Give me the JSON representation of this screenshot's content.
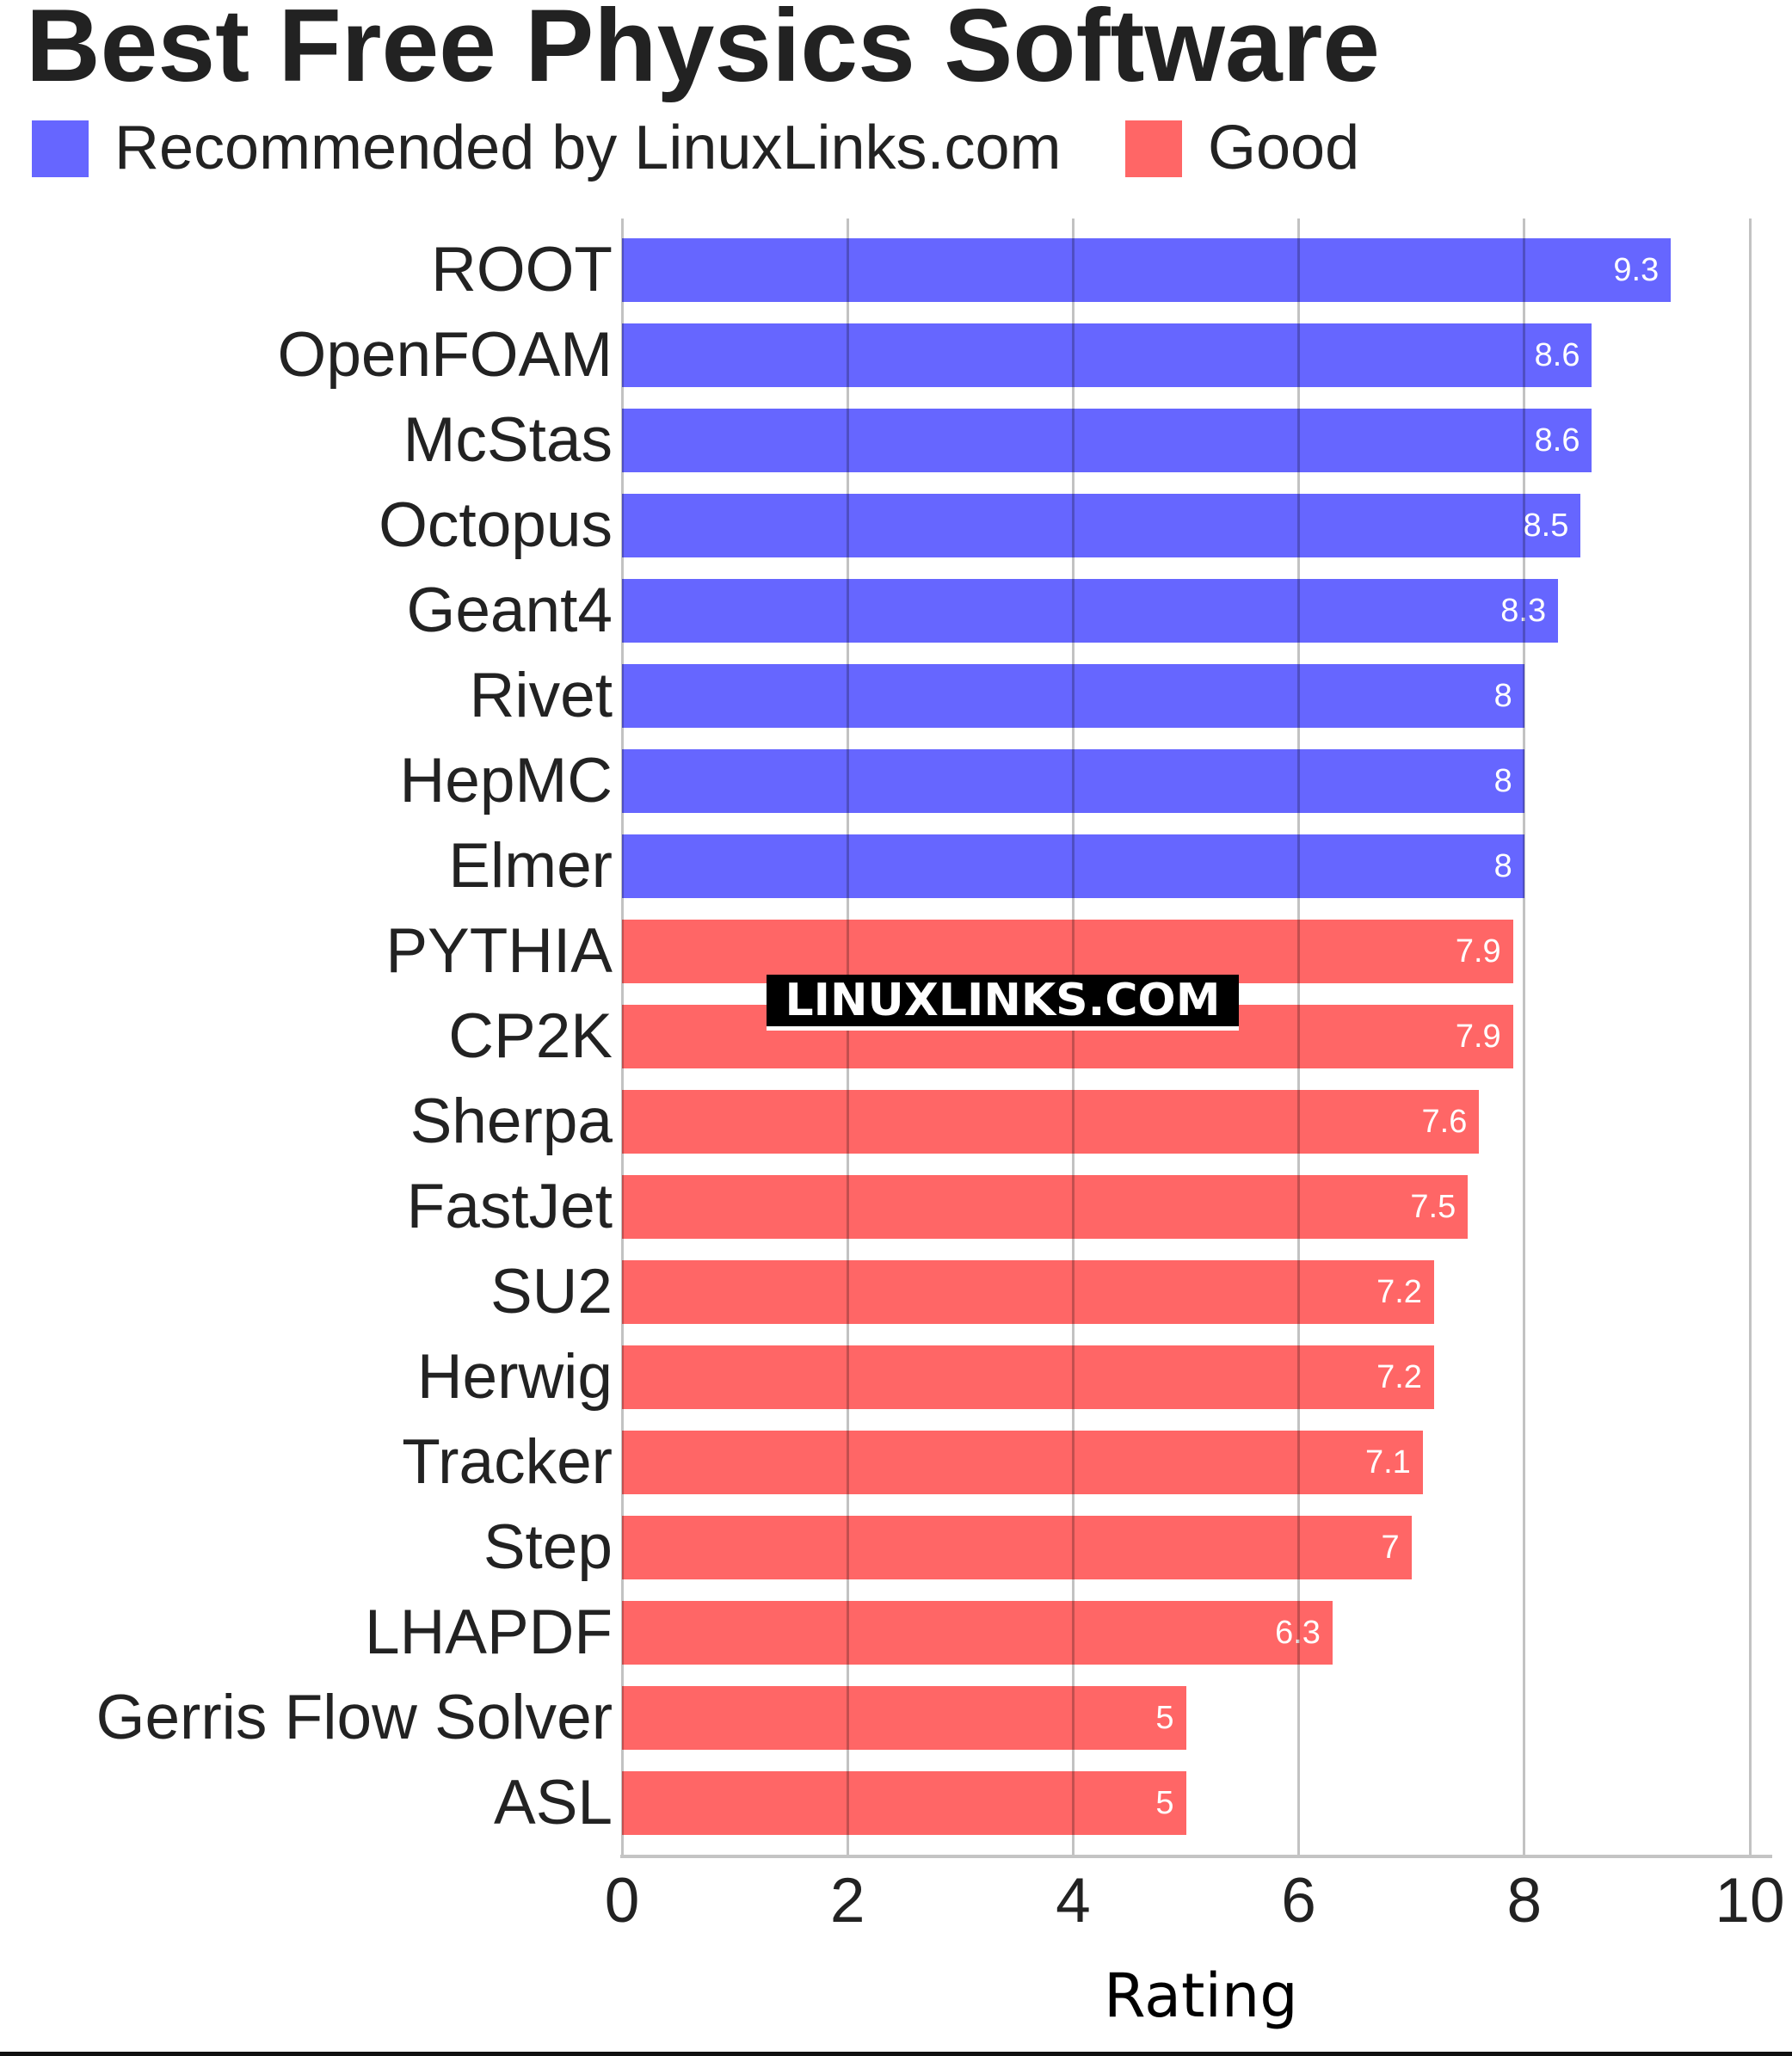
{
  "title": "Best Free Physics Software",
  "legend": [
    {
      "label": "Recommended by LinuxLinks.com",
      "color": "#6666ff"
    },
    {
      "label": "Good",
      "color": "#ff6666"
    }
  ],
  "watermark": "LINUXLINKS.COM",
  "chart_data": {
    "type": "bar",
    "orientation": "horizontal",
    "title": "Best Free Physics Software",
    "xlabel": "Rating",
    "ylabel": "",
    "xlim": [
      0,
      10
    ],
    "x_ticks": [
      "0",
      "2",
      "4",
      "6",
      "8",
      "10"
    ],
    "grid": true,
    "legend_position": "top-left",
    "categories": [
      "ROOT",
      "OpenFOAM",
      "McStas",
      "Octopus",
      "Geant4",
      "Rivet",
      "HepMC",
      "Elmer",
      "PYTHIA",
      "CP2K",
      "Sherpa",
      "FastJet",
      "SU2",
      "Herwig",
      "Tracker",
      "Step",
      "LHAPDF",
      "Gerris Flow Solver",
      "ASL"
    ],
    "values": [
      9.3,
      8.6,
      8.6,
      8.5,
      8.3,
      8,
      8,
      8,
      7.9,
      7.9,
      7.6,
      7.5,
      7.2,
      7.2,
      7.1,
      7,
      6.3,
      5,
      5
    ],
    "value_labels": [
      "9.3",
      "8.6",
      "8.6",
      "8.5",
      "8.3",
      "8",
      "8",
      "8",
      "7.9",
      "7.9",
      "7.6",
      "7.5",
      "7.2",
      "7.2",
      "7.1",
      "7",
      "6.3",
      "5",
      "5"
    ],
    "groups": [
      "Recommended by LinuxLinks.com",
      "Recommended by LinuxLinks.com",
      "Recommended by LinuxLinks.com",
      "Recommended by LinuxLinks.com",
      "Recommended by LinuxLinks.com",
      "Recommended by LinuxLinks.com",
      "Recommended by LinuxLinks.com",
      "Recommended by LinuxLinks.com",
      "Good",
      "Good",
      "Good",
      "Good",
      "Good",
      "Good",
      "Good",
      "Good",
      "Good",
      "Good",
      "Good"
    ],
    "series": [
      {
        "name": "Recommended by LinuxLinks.com",
        "color": "#6666ff",
        "categories": [
          "ROOT",
          "OpenFOAM",
          "McStas",
          "Octopus",
          "Geant4",
          "Rivet",
          "HepMC",
          "Elmer"
        ],
        "values": [
          9.3,
          8.6,
          8.6,
          8.5,
          8.3,
          8,
          8,
          8
        ]
      },
      {
        "name": "Good",
        "color": "#ff6666",
        "categories": [
          "PYTHIA",
          "CP2K",
          "Sherpa",
          "FastJet",
          "SU2",
          "Herwig",
          "Tracker",
          "Step",
          "LHAPDF",
          "Gerris Flow Solver",
          "ASL"
        ],
        "values": [
          7.9,
          7.9,
          7.6,
          7.5,
          7.2,
          7.2,
          7.1,
          7,
          6.3,
          5,
          5
        ]
      }
    ]
  }
}
